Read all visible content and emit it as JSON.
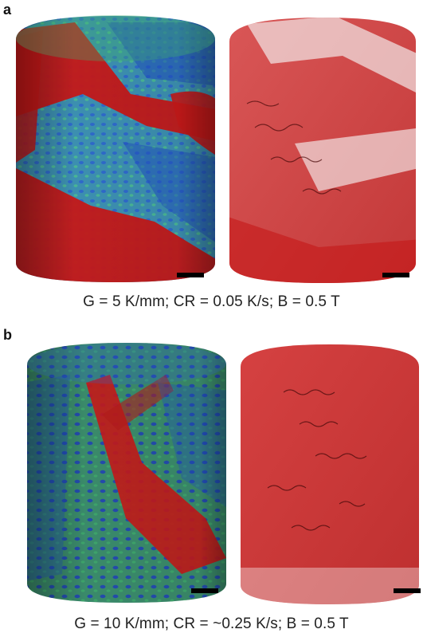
{
  "panels": [
    {
      "label": "a",
      "caption": "G = 5 K/mm; CR = 0.05 K/s; B = 0.5 T",
      "left_render": "color-mapped 3D dendrite volume",
      "right_render": "red semi-transparent 3D volume"
    },
    {
      "label": "b",
      "caption": "G = 10 K/mm; CR = ~0.25 K/s; B = 0.5 T",
      "left_render": "color-mapped 3D dendrite volume",
      "right_render": "red semi-transparent 3D volume"
    }
  ],
  "colors": {
    "red_phase": "#c41818",
    "blue_phase": "#1f4fc0",
    "green_phase": "#3fae6a",
    "scale_bar": "#000000"
  }
}
